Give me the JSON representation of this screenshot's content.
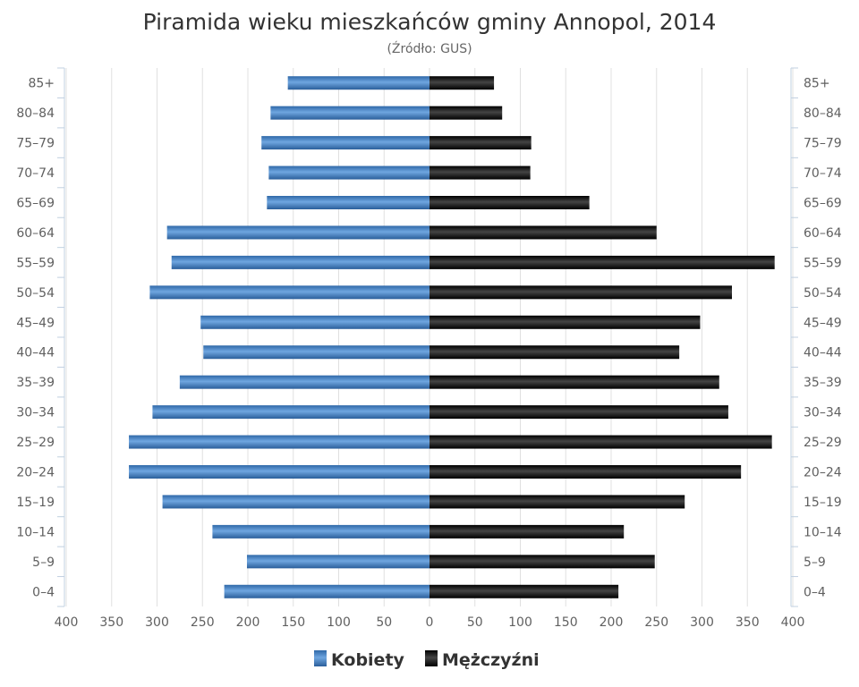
{
  "chart_data": {
    "type": "bar",
    "orientation": "horizontal-pyramid",
    "title": "Piramida wieku mieszkańców gminy Annopol, 2014",
    "subtitle": "(Źródło: GUS)",
    "categories": [
      "85+",
      "80-84",
      "75-79",
      "70-74",
      "65-69",
      "60-64",
      "55-59",
      "50-54",
      "45-49",
      "40-44",
      "35-39",
      "30-34",
      "25-29",
      "20-24",
      "15-19",
      "10-14",
      "5-9",
      "0-4"
    ],
    "series": [
      {
        "name": "Kobiety",
        "side": "left",
        "color": "#4a86c5",
        "values": [
          156,
          175,
          185,
          177,
          179,
          289,
          284,
          308,
          252,
          249,
          275,
          305,
          331,
          331,
          294,
          239,
          201,
          226
        ]
      },
      {
        "name": "Mężczyźni",
        "side": "right",
        "color": "#1a1a1a",
        "values": [
          71,
          80,
          112,
          111,
          176,
          250,
          380,
          333,
          298,
          275,
          319,
          329,
          377,
          343,
          281,
          214,
          248,
          208
        ]
      }
    ],
    "xlim": [
      -400,
      400
    ],
    "xticks": [
      400,
      350,
      300,
      250,
      200,
      150,
      100,
      50,
      0,
      50,
      100,
      150,
      200,
      250,
      300,
      350,
      400
    ],
    "grid": true,
    "legend_position": "bottom-center"
  }
}
